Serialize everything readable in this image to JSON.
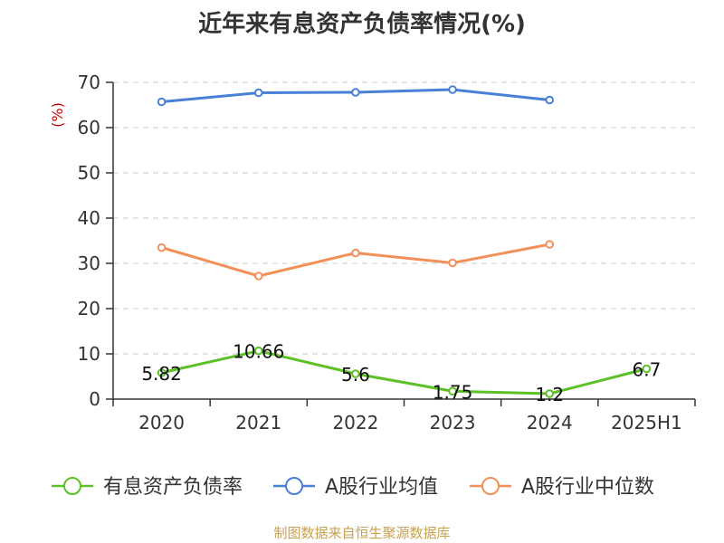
{
  "chart_data": {
    "type": "line",
    "title": "近年来有息资产负债率情况(%)",
    "ylabel": "(%)",
    "categories": [
      "2020",
      "2021",
      "2022",
      "2023",
      "2024",
      "2025H1"
    ],
    "ylim": [
      0,
      70
    ],
    "yticks": [
      "0",
      "10",
      "20",
      "30",
      "40",
      "50",
      "60",
      "70"
    ],
    "grid": true,
    "legend_position": "bottom",
    "series": [
      {
        "name": "有息资产负债率",
        "color": "#5cc125",
        "values": [
          5.82,
          10.66,
          5.6,
          1.75,
          1.2,
          6.7
        ],
        "labels": [
          "5.82",
          "10.66",
          "5.6",
          "1.75",
          "1.2",
          "6.7"
        ]
      },
      {
        "name": "A股行业均值",
        "color": "#4a7fd6",
        "values": [
          65.7,
          67.7,
          67.8,
          68.4,
          66.1,
          null
        ],
        "labels": null
      },
      {
        "name": "A股行业中位数",
        "color": "#f2905a",
        "values": [
          33.5,
          27.2,
          32.3,
          30.1,
          34.2,
          null
        ],
        "labels": null
      }
    ]
  },
  "footer": {
    "source": "制图数据来自恒生聚源数据库"
  }
}
